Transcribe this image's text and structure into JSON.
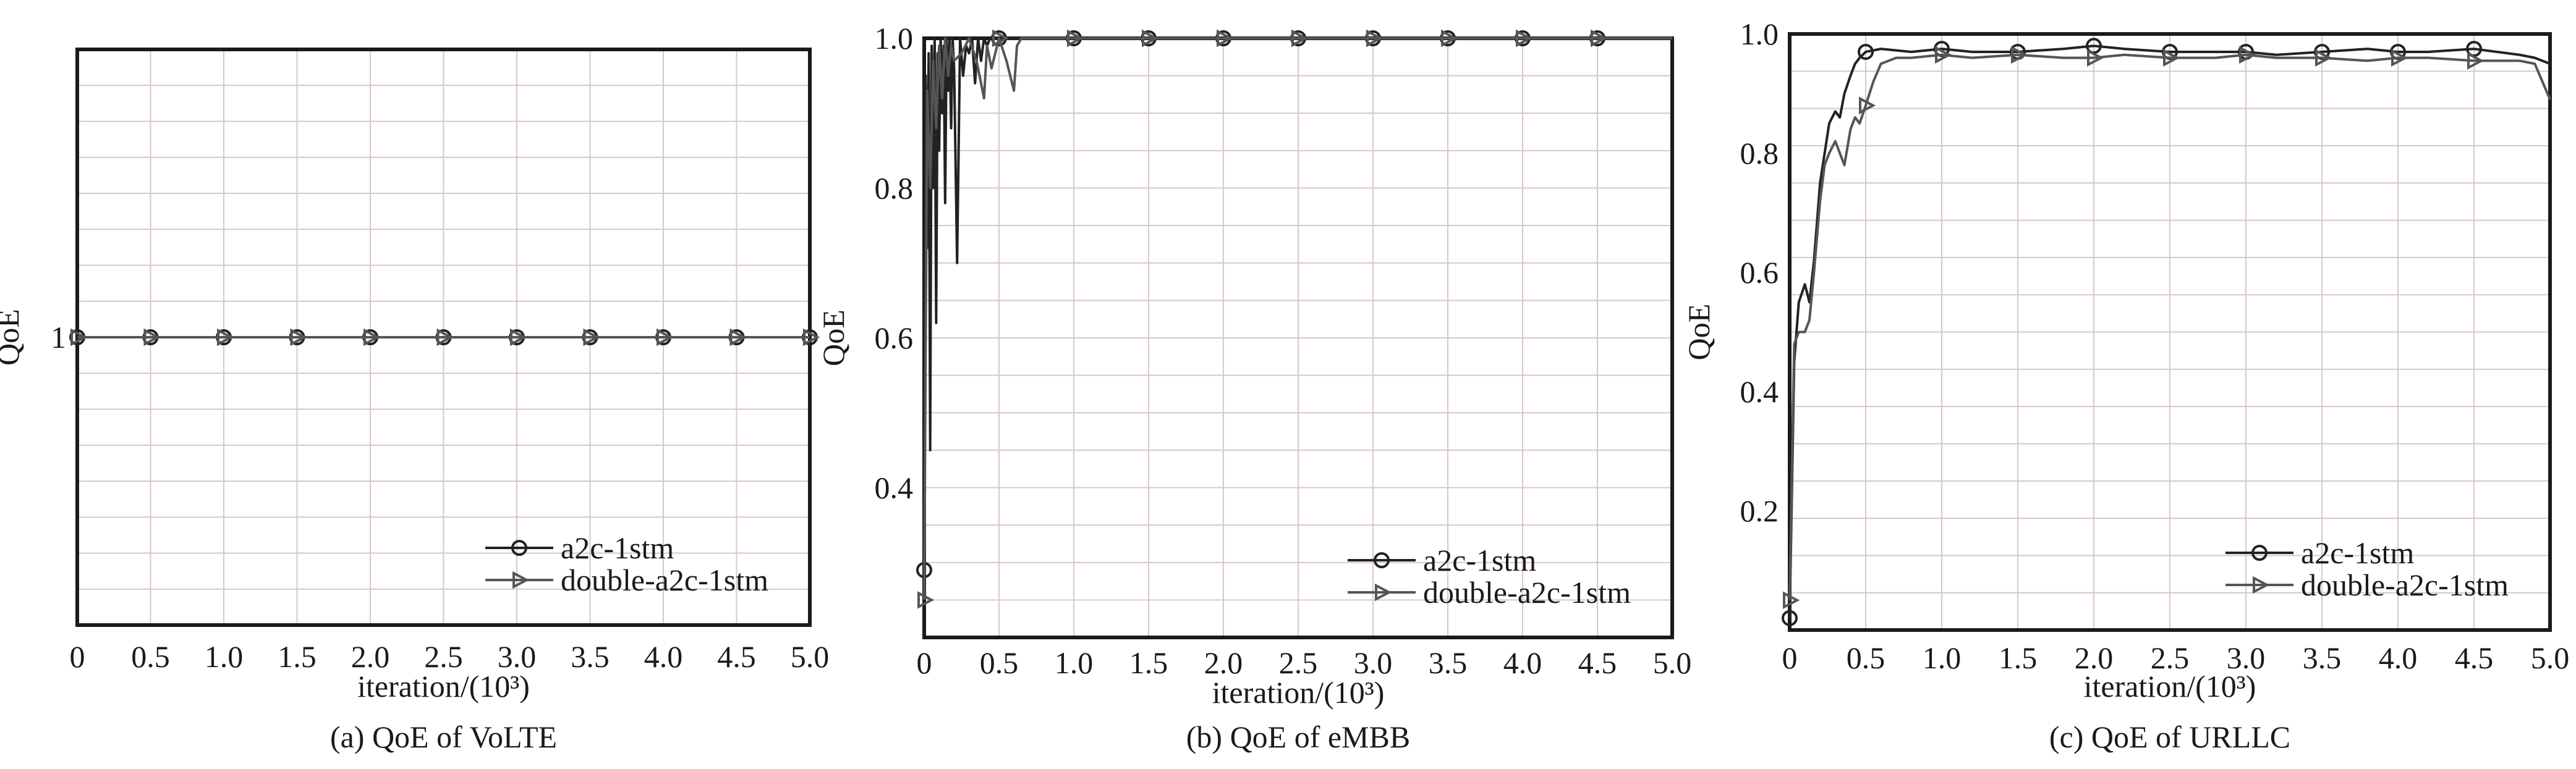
{
  "chart_data": [
    {
      "type": "line",
      "caption": "(a) QoE of VoLTE",
      "xlabel": "iteration/(10³)",
      "ylabel": "QoE",
      "xlim": [
        0,
        5.0
      ],
      "ylim": [
        0,
        2
      ],
      "x_ticks": [
        "0",
        "0.5",
        "1.0",
        "1.5",
        "2.0",
        "2.5",
        "3.0",
        "3.5",
        "4.0",
        "4.5",
        "5.0"
      ],
      "y_ticks": [
        {
          "value": 1,
          "label": "1"
        }
      ],
      "grid": true,
      "legend": "bottom-right",
      "series": [
        {
          "name": "a2c-1stm",
          "marker": "circle",
          "x": [
            0,
            0.5,
            1.0,
            1.5,
            2.0,
            2.5,
            3.0,
            3.5,
            4.0,
            4.5,
            5.0
          ],
          "values": [
            1,
            1,
            1,
            1,
            1,
            1,
            1,
            1,
            1,
            1,
            1
          ]
        },
        {
          "name": "double-a2c-1stm",
          "marker": "triangle-right",
          "x": [
            0,
            0.5,
            1.0,
            1.5,
            2.0,
            2.5,
            3.0,
            3.5,
            4.0,
            4.5,
            5.0
          ],
          "values": [
            1,
            1,
            1,
            1,
            1,
            1,
            1,
            1,
            1,
            1,
            1
          ]
        }
      ]
    },
    {
      "type": "line",
      "caption": "(b) QoE of eMBB",
      "xlabel": "iteration/(10³)",
      "ylabel": "QoE",
      "xlim": [
        0,
        5.0
      ],
      "ylim": [
        0.2,
        1.0
      ],
      "x_ticks": [
        "0",
        "0.5",
        "1.0",
        "1.5",
        "2.0",
        "2.5",
        "3.0",
        "3.5",
        "4.0",
        "4.5",
        "5.0"
      ],
      "y_ticks": [
        {
          "value": 0.4,
          "label": "0.4"
        },
        {
          "value": 0.6,
          "label": "0.6"
        },
        {
          "value": 0.8,
          "label": "0.8"
        },
        {
          "value": 1.0,
          "label": "1.0"
        }
      ],
      "grid": true,
      "legend": "bottom-right",
      "series": [
        {
          "name": "a2c-1stm",
          "marker": "circle",
          "x": [
            0,
            0.01,
            0.02,
            0.03,
            0.04,
            0.05,
            0.06,
            0.07,
            0.08,
            0.09,
            0.1,
            0.11,
            0.12,
            0.13,
            0.14,
            0.15,
            0.16,
            0.17,
            0.18,
            0.19,
            0.2,
            0.22,
            0.24,
            0.26,
            0.28,
            0.3,
            0.32,
            0.34,
            0.36,
            0.38,
            0.4,
            0.42,
            0.44,
            0.46,
            0.48,
            0.5,
            1.0,
            1.5,
            2.0,
            2.5,
            3.0,
            3.5,
            4.0,
            4.5,
            5.0
          ],
          "values": [
            0.29,
            0.95,
            0.72,
            0.98,
            0.45,
            0.99,
            0.8,
            1.0,
            0.62,
            0.98,
            0.85,
            1.0,
            0.9,
            0.99,
            0.78,
            1.0,
            0.93,
            1.0,
            0.88,
            1.0,
            0.96,
            0.7,
            1.0,
            0.95,
            0.99,
            0.98,
            1.0,
            0.94,
            1.0,
            0.97,
            1.0,
            0.99,
            1.0,
            1.0,
            1.0,
            1.0,
            1.0,
            1.0,
            1.0,
            1.0,
            1.0,
            1.0,
            1.0,
            1.0,
            1.0
          ]
        },
        {
          "name": "double-a2c-1stm",
          "marker": "triangle-right",
          "x": [
            0,
            0.02,
            0.04,
            0.06,
            0.08,
            0.1,
            0.12,
            0.14,
            0.16,
            0.18,
            0.2,
            0.25,
            0.3,
            0.35,
            0.4,
            0.42,
            0.45,
            0.5,
            0.55,
            0.6,
            0.62,
            0.65,
            1.0,
            1.5,
            2.0,
            2.5,
            3.0,
            3.5,
            4.0,
            4.5,
            5.0
          ],
          "values": [
            0.25,
            0.93,
            0.8,
            0.97,
            0.88,
            0.99,
            0.92,
            1.0,
            0.95,
            0.99,
            0.97,
            0.98,
            1.0,
            0.97,
            0.92,
            0.99,
            0.96,
            1.0,
            0.97,
            0.93,
            0.99,
            1.0,
            1.0,
            1.0,
            1.0,
            1.0,
            1.0,
            1.0,
            1.0,
            1.0,
            1.0
          ]
        }
      ]
    },
    {
      "type": "line",
      "caption": "(c) QoE of URLLC",
      "xlabel": "iteration/(10³)",
      "ylabel": "QoE",
      "xlim": [
        0,
        5.0
      ],
      "ylim": [
        0,
        1.0
      ],
      "x_ticks": [
        "0",
        "0.5",
        "1.0",
        "1.5",
        "2.0",
        "2.5",
        "3.0",
        "3.5",
        "4.0",
        "4.5",
        "5.0"
      ],
      "y_ticks": [
        {
          "value": 0.2,
          "label": "0.2"
        },
        {
          "value": 0.4,
          "label": "0.4"
        },
        {
          "value": 0.6,
          "label": "0.6"
        },
        {
          "value": 0.8,
          "label": "0.8"
        },
        {
          "value": 1.0,
          "label": "1.0"
        }
      ],
      "grid": true,
      "legend": "bottom-right",
      "series": [
        {
          "name": "a2c-1stm",
          "marker": "circle",
          "x": [
            0,
            0.03,
            0.06,
            0.1,
            0.13,
            0.16,
            0.2,
            0.23,
            0.26,
            0.3,
            0.33,
            0.36,
            0.4,
            0.43,
            0.46,
            0.5,
            0.6,
            0.8,
            1.0,
            1.2,
            1.5,
            1.8,
            2.0,
            2.2,
            2.5,
            2.8,
            3.0,
            3.2,
            3.5,
            3.8,
            4.0,
            4.2,
            4.5,
            4.8,
            4.9,
            5.0
          ],
          "values": [
            0.02,
            0.45,
            0.55,
            0.58,
            0.55,
            0.62,
            0.75,
            0.8,
            0.85,
            0.87,
            0.86,
            0.9,
            0.93,
            0.95,
            0.96,
            0.97,
            0.975,
            0.97,
            0.975,
            0.97,
            0.97,
            0.975,
            0.98,
            0.975,
            0.97,
            0.97,
            0.97,
            0.965,
            0.97,
            0.975,
            0.97,
            0.97,
            0.975,
            0.965,
            0.96,
            0.95
          ]
        },
        {
          "name": "double-a2c-1stm",
          "marker": "triangle-right",
          "x": [
            0,
            0.03,
            0.06,
            0.1,
            0.13,
            0.16,
            0.2,
            0.23,
            0.26,
            0.3,
            0.33,
            0.36,
            0.4,
            0.43,
            0.46,
            0.5,
            0.55,
            0.6,
            0.7,
            0.8,
            1.0,
            1.2,
            1.5,
            1.8,
            2.0,
            2.2,
            2.5,
            2.8,
            3.0,
            3.2,
            3.5,
            3.8,
            4.0,
            4.2,
            4.5,
            4.8,
            4.9,
            5.0
          ],
          "values": [
            0.05,
            0.48,
            0.5,
            0.5,
            0.52,
            0.6,
            0.72,
            0.78,
            0.8,
            0.82,
            0.8,
            0.78,
            0.84,
            0.86,
            0.85,
            0.88,
            0.92,
            0.95,
            0.96,
            0.96,
            0.965,
            0.96,
            0.965,
            0.96,
            0.96,
            0.965,
            0.96,
            0.96,
            0.965,
            0.96,
            0.96,
            0.955,
            0.96,
            0.96,
            0.955,
            0.955,
            0.95,
            0.89
          ]
        }
      ]
    }
  ]
}
